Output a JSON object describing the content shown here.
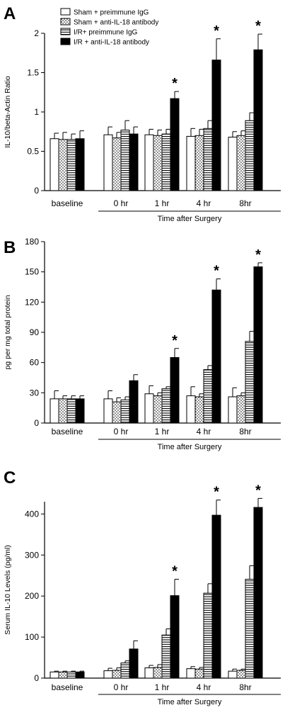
{
  "legend": [
    {
      "pattern": "white",
      "label": "Sham + preimmune IgG"
    },
    {
      "pattern": "dots",
      "label": "Sham + anti-IL-18 antibody"
    },
    {
      "pattern": "hlines",
      "label": "I/R+ preimmune IgG"
    },
    {
      "pattern": "black",
      "label": "I/R + anti-IL-18 antibody"
    }
  ],
  "significance_marker": "*",
  "chart_data": [
    {
      "panel": "A",
      "type": "bar",
      "ylabel": "IL-10/beta-Actin Ratio",
      "xlabel": "Time after Surgery",
      "categories": [
        "baseline",
        "0 hr",
        "1 hr",
        "4 hr",
        "8hr"
      ],
      "ylim": [
        0,
        2
      ],
      "yticks": [
        "0",
        "0.5",
        "1",
        "1.5",
        "2"
      ],
      "yticks_values": [
        0,
        0.5,
        1,
        1.5,
        2
      ],
      "series": [
        {
          "name": "Sham + preimmune IgG",
          "values": [
            0.66,
            0.71,
            0.71,
            0.69,
            0.68
          ],
          "errors": [
            0.07,
            0.1,
            0.07,
            0.1,
            0.07
          ]
        },
        {
          "name": "Sham + anti-IL-18 antibody",
          "values": [
            0.65,
            0.67,
            0.7,
            0.7,
            0.7
          ],
          "errors": [
            0.09,
            0.07,
            0.07,
            0.08,
            0.06
          ]
        },
        {
          "name": "I/R+ preimmune IgG",
          "values": [
            0.65,
            0.77,
            0.72,
            0.79,
            0.89
          ],
          "errors": [
            0.07,
            0.12,
            0.06,
            0.1,
            0.1
          ]
        },
        {
          "name": "I/R + anti-IL-18 antibody",
          "values": [
            0.66,
            0.72,
            1.17,
            1.66,
            1.79
          ],
          "errors": [
            0.1,
            0.09,
            0.09,
            0.27,
            0.2
          ]
        }
      ],
      "significant": [
        [
          3,
          2
        ],
        [
          3,
          3
        ],
        [
          3,
          4
        ]
      ]
    },
    {
      "panel": "B",
      "type": "bar",
      "ylabel": "pg per mg total protein",
      "xlabel": "Time after Surgery",
      "categories": [
        "baseline",
        "0 hr",
        "1 hr",
        "4 hr",
        "8hr"
      ],
      "ylim": [
        0,
        180
      ],
      "yticks": [
        "0",
        "30",
        "60",
        "90",
        "120",
        "150",
        "180"
      ],
      "yticks_values": [
        0,
        30,
        60,
        90,
        120,
        150,
        180
      ],
      "series": [
        {
          "name": "Sham + preimmune IgG",
          "values": [
            24,
            24,
            29,
            27,
            26
          ],
          "errors": [
            8,
            8,
            8,
            9,
            9
          ]
        },
        {
          "name": "Sham + anti-IL-18 antibody",
          "values": [
            24,
            21,
            27,
            26,
            27
          ],
          "errors": [
            3,
            4,
            3,
            3,
            3
          ]
        },
        {
          "name": "I/R+ preimmune IgG",
          "values": [
            24,
            23,
            34,
            53,
            81
          ],
          "errors": [
            3,
            3,
            2,
            4,
            10
          ]
        },
        {
          "name": "I/R + anti-IL-18 antibody",
          "values": [
            24,
            42,
            65,
            132,
            155
          ],
          "errors": [
            3,
            6,
            9,
            11,
            4
          ]
        }
      ],
      "significant": [
        [
          3,
          2
        ],
        [
          3,
          3
        ],
        [
          3,
          4
        ]
      ]
    },
    {
      "panel": "C",
      "type": "bar",
      "ylabel": "Serum IL-10 Levels (pg/ml)",
      "xlabel": "Time after Surgery",
      "categories": [
        "baseline",
        "0 hr",
        "1 hr",
        "4 hr",
        "8hr"
      ],
      "ylim": [
        0,
        430
      ],
      "yticks": [
        "0",
        "100",
        "200",
        "300",
        "400"
      ],
      "yticks_values": [
        0,
        100,
        200,
        300,
        400
      ],
      "series": [
        {
          "name": "Sham + preimmune IgG",
          "values": [
            15,
            18,
            25,
            23,
            17
          ],
          "errors": [
            2,
            6,
            6,
            5,
            5
          ]
        },
        {
          "name": "Sham + anti-IL-18 antibody",
          "values": [
            15,
            19,
            26,
            22,
            19
          ],
          "errors": [
            2,
            6,
            7,
            4,
            3
          ]
        },
        {
          "name": "I/R+ preimmune IgG",
          "values": [
            15,
            37,
            105,
            207,
            241
          ],
          "errors": [
            2,
            5,
            15,
            23,
            33
          ]
        },
        {
          "name": "I/R + anti-IL-18 antibody",
          "values": [
            15,
            71,
            201,
            397,
            416
          ],
          "errors": [
            2,
            20,
            40,
            37,
            22
          ]
        }
      ],
      "significant": [
        [
          3,
          2
        ],
        [
          3,
          3
        ],
        [
          3,
          4
        ]
      ]
    }
  ]
}
